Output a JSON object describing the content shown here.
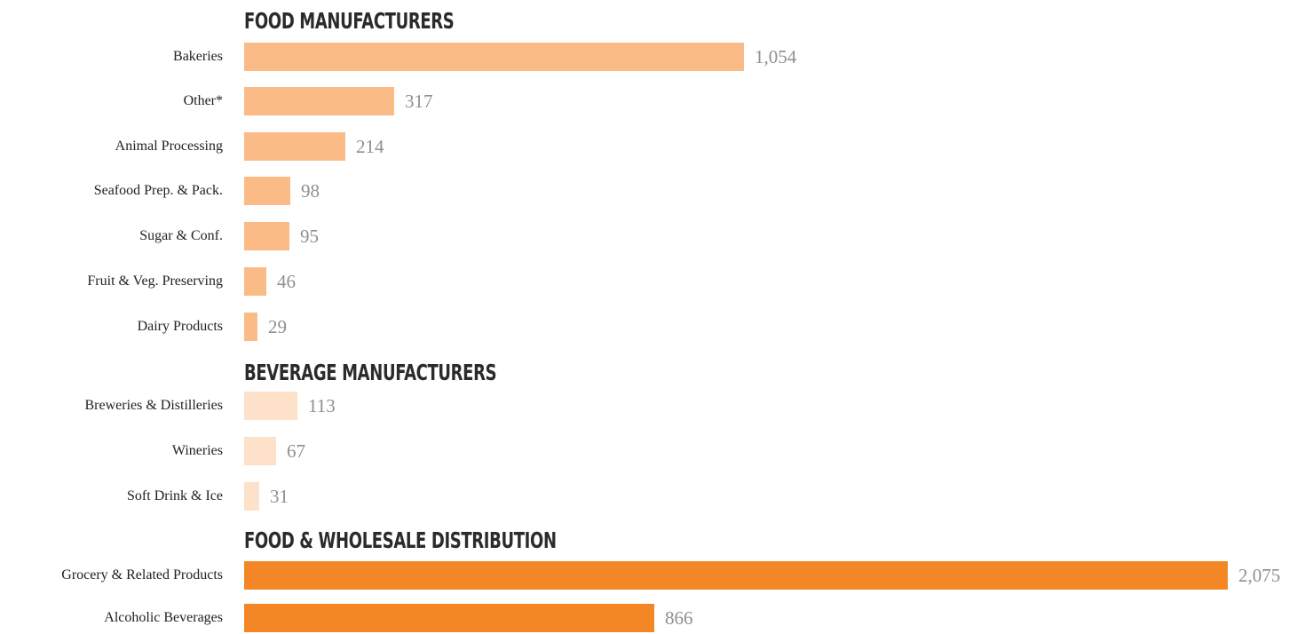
{
  "chart_data": {
    "type": "bar",
    "orientation": "horizontal",
    "xlim": [
      0,
      2075
    ],
    "grid": false,
    "groups": [
      {
        "title": "FOOD MANUFACTURERS",
        "color": "#fbbb86",
        "categories": [
          "Bakeries",
          "Other*",
          "Animal Processing",
          "Seafood Prep. & Pack.",
          "Sugar & Conf.",
          "Fruit & Veg. Preserving",
          "Dairy Products"
        ],
        "values": [
          1054,
          317,
          214,
          98,
          95,
          46,
          29
        ],
        "value_labels": [
          "1,054",
          "317",
          "214",
          "98",
          "95",
          "46",
          "29"
        ]
      },
      {
        "title": "BEVERAGE MANUFACTURERS",
        "color": "#fde1c9",
        "categories": [
          "Breweries & Distilleries",
          "Wineries",
          "Soft Drink & Ice"
        ],
        "values": [
          113,
          67,
          31
        ],
        "value_labels": [
          "113",
          "67",
          "31"
        ]
      },
      {
        "title": "FOOD & WHOLESALE DISTRIBUTION",
        "color": "#f38725",
        "categories": [
          "Grocery & Related Products",
          "Alcoholic Beverages"
        ],
        "values": [
          2075,
          866
        ],
        "value_labels": [
          "2,075",
          "866"
        ]
      }
    ]
  }
}
